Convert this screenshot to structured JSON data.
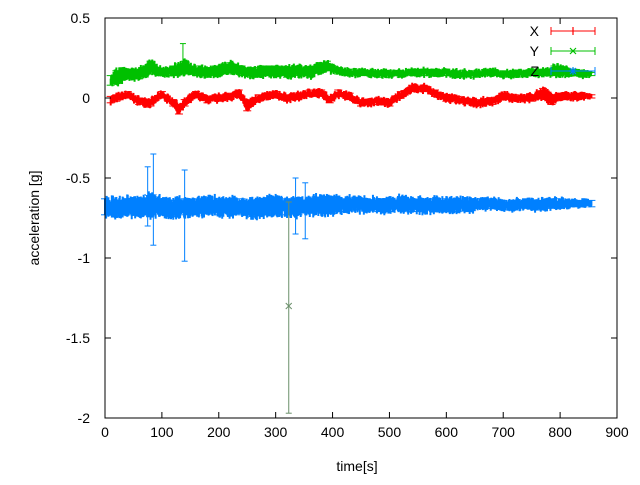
{
  "chart_data": {
    "type": "line",
    "xlabel": "time[s]",
    "ylabel": "acceleration [g]",
    "xlim": [
      0,
      900
    ],
    "ylim": [
      -2,
      0.5
    ],
    "xticks": [
      0,
      100,
      200,
      300,
      400,
      500,
      600,
      700,
      800,
      900
    ],
    "xtick_labels": [
      "0",
      "100",
      "200",
      "300",
      "400",
      "500",
      "600",
      "700",
      "800",
      "900"
    ],
    "yticks": [
      0.5,
      0,
      -0.5,
      -1,
      -1.5,
      -2
    ],
    "ytick_labels": [
      "0.5",
      "0",
      "-0.5",
      "-1",
      "-1.5",
      "-2"
    ],
    "grid": false,
    "legend_position": "top-right",
    "error_bars": true,
    "series": [
      {
        "name": "X",
        "color": "#ff0000",
        "marker": "plus",
        "x": [
          10,
          20,
          40,
          60,
          80,
          100,
          120,
          130,
          140,
          160,
          180,
          200,
          220,
          235,
          250,
          270,
          300,
          320,
          340,
          360,
          380,
          395,
          410,
          430,
          450,
          480,
          500,
          520,
          540,
          560,
          580,
          600,
          620,
          650,
          680,
          700,
          720,
          750,
          770,
          785,
          800,
          830,
          855
        ],
        "y": [
          -0.01,
          0.0,
          0.02,
          -0.02,
          -0.03,
          0.02,
          -0.03,
          -0.07,
          -0.03,
          0.02,
          -0.01,
          0.0,
          0.01,
          0.03,
          -0.05,
          0.0,
          0.02,
          0.0,
          0.01,
          0.03,
          0.03,
          -0.01,
          0.03,
          0.01,
          -0.03,
          -0.02,
          -0.03,
          0.02,
          0.06,
          0.06,
          0.03,
          0.0,
          -0.01,
          -0.03,
          -0.02,
          0.01,
          0.0,
          0.0,
          0.03,
          -0.01,
          0.01,
          0.01,
          0.01
        ],
        "err": [
          0.02,
          0.02,
          0.02,
          0.02,
          0.02,
          0.02,
          0.02,
          0.03,
          0.02,
          0.02,
          0.02,
          0.02,
          0.02,
          0.02,
          0.03,
          0.02,
          0.02,
          0.02,
          0.02,
          0.02,
          0.02,
          0.02,
          0.02,
          0.02,
          0.02,
          0.02,
          0.02,
          0.02,
          0.02,
          0.02,
          0.02,
          0.02,
          0.02,
          0.02,
          0.02,
          0.02,
          0.02,
          0.02,
          0.03,
          0.03,
          0.02,
          0.02,
          0.01
        ]
      },
      {
        "name": "Y",
        "color": "#00c000",
        "marker": "cross",
        "x": [
          10,
          20,
          40,
          60,
          80,
          100,
          120,
          140,
          160,
          180,
          200,
          220,
          240,
          260,
          280,
          300,
          320,
          340,
          360,
          380,
          390,
          410,
          430,
          450,
          480,
          500,
          520,
          540,
          560,
          580,
          600,
          620,
          650,
          680,
          700,
          720,
          750,
          770,
          790,
          800,
          820,
          840,
          855
        ],
        "y": [
          0.11,
          0.13,
          0.15,
          0.15,
          0.19,
          0.16,
          0.17,
          0.19,
          0.17,
          0.16,
          0.17,
          0.19,
          0.17,
          0.16,
          0.17,
          0.17,
          0.16,
          0.17,
          0.16,
          0.19,
          0.2,
          0.17,
          0.16,
          0.16,
          0.15,
          0.15,
          0.15,
          0.16,
          0.16,
          0.16,
          0.16,
          0.15,
          0.15,
          0.16,
          0.15,
          0.15,
          0.16,
          0.16,
          0.17,
          0.17,
          0.16,
          0.15,
          0.15
        ],
        "err": [
          0.03,
          0.04,
          0.03,
          0.03,
          0.04,
          0.02,
          0.03,
          0.04,
          0.03,
          0.03,
          0.03,
          0.03,
          0.03,
          0.03,
          0.03,
          0.03,
          0.03,
          0.03,
          0.03,
          0.03,
          0.03,
          0.02,
          0.02,
          0.02,
          0.02,
          0.02,
          0.02,
          0.02,
          0.02,
          0.02,
          0.02,
          0.02,
          0.02,
          0.02,
          0.02,
          0.02,
          0.02,
          0.02,
          0.03,
          0.03,
          0.02,
          0.02,
          0.01
        ]
      },
      {
        "name": "Z",
        "color": "#0080ff",
        "marker": "star",
        "x": [
          0,
          20,
          40,
          60,
          80,
          100,
          120,
          140,
          160,
          180,
          200,
          220,
          240,
          260,
          280,
          300,
          320,
          340,
          360,
          380,
          400,
          420,
          440,
          460,
          480,
          500,
          520,
          540,
          560,
          580,
          600,
          620,
          640,
          660,
          680,
          700,
          720,
          740,
          760,
          780,
          800,
          820,
          840,
          855
        ],
        "y": [
          -0.68,
          -0.69,
          -0.68,
          -0.68,
          -0.67,
          -0.68,
          -0.69,
          -0.68,
          -0.68,
          -0.67,
          -0.68,
          -0.68,
          -0.68,
          -0.69,
          -0.68,
          -0.67,
          -0.68,
          -0.68,
          -0.67,
          -0.67,
          -0.67,
          -0.67,
          -0.66,
          -0.67,
          -0.67,
          -0.67,
          -0.66,
          -0.67,
          -0.67,
          -0.67,
          -0.67,
          -0.67,
          -0.67,
          -0.66,
          -0.66,
          -0.67,
          -0.67,
          -0.66,
          -0.67,
          -0.66,
          -0.66,
          -0.66,
          -0.66,
          -0.66
        ],
        "err": [
          0.05,
          0.05,
          0.05,
          0.05,
          0.06,
          0.05,
          0.05,
          0.05,
          0.05,
          0.05,
          0.05,
          0.05,
          0.05,
          0.05,
          0.05,
          0.05,
          0.05,
          0.05,
          0.05,
          0.05,
          0.05,
          0.04,
          0.04,
          0.04,
          0.04,
          0.04,
          0.04,
          0.04,
          0.04,
          0.04,
          0.04,
          0.04,
          0.04,
          0.03,
          0.03,
          0.03,
          0.03,
          0.03,
          0.03,
          0.03,
          0.03,
          0.02,
          0.02,
          0.02
        ]
      }
    ],
    "outliers": [
      {
        "series": "Y",
        "x": 137,
        "y": 0.19,
        "low": 0.15,
        "high": 0.34
      },
      {
        "series": "Y",
        "x": 323,
        "y": -1.3,
        "low": -1.97,
        "high": -0.65
      },
      {
        "series": "Z",
        "x": 85,
        "y": -0.62,
        "low": -0.92,
        "high": -0.35
      },
      {
        "series": "Z",
        "x": 140,
        "y": -0.7,
        "low": -1.02,
        "high": -0.45
      },
      {
        "series": "Z",
        "x": 75,
        "y": -0.62,
        "low": -0.8,
        "high": -0.43
      },
      {
        "series": "Z",
        "x": 335,
        "y": -0.7,
        "low": -0.85,
        "high": -0.5
      },
      {
        "series": "Z",
        "x": 352,
        "y": -0.65,
        "low": -0.88,
        "high": -0.53
      }
    ]
  }
}
